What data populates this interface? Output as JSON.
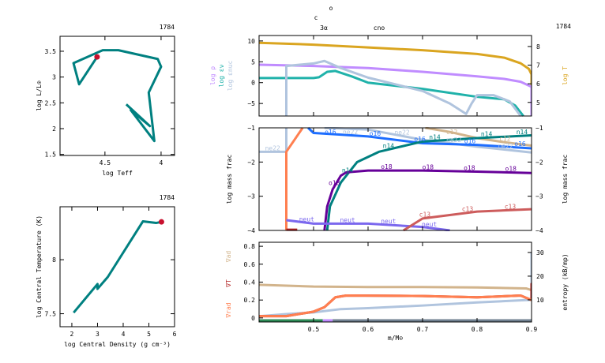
{
  "colors": {
    "teal": "#008080",
    "dot": "#c8102e",
    "logT": "#daa520",
    "logRho": "#c08cff",
    "epsNu": "#20b2aa",
    "epsNuc": "#b0c4de",
    "ne22": "#b0c4de",
    "o16": "#1e6eff",
    "c12": "#d2b48c",
    "n14": "#008080",
    "o18": "#660099",
    "neut": "#7b68ee",
    "c13": "#cd5c5c",
    "coral": "#ff7f50",
    "darkred": "#b22222",
    "gradAd": "#d2b48c",
    "gradRad": "#ff7f50",
    "gradT": "#b22222",
    "entropy": "#b0c4de"
  },
  "burn_labels": [
    {
      "text": "o"
    },
    {
      "text": "c"
    },
    {
      "text": "3α"
    },
    {
      "text": "cno"
    }
  ],
  "chart_data": [
    {
      "id": "hr",
      "type": "line",
      "model": "1784",
      "xlabel": "log Teff",
      "ylabel": "log L/L⊙",
      "xlim": [
        4.9,
        3.88
      ],
      "ylim": [
        1.48,
        3.79
      ],
      "xticks": [
        {
          "v": 4.5,
          "label": "4.5"
        },
        {
          "v": 4,
          "label": "4"
        }
      ],
      "yticks": [
        {
          "v": 1.5,
          "label": "1.5"
        },
        {
          "v": 2,
          "label": "2"
        },
        {
          "v": 2.5,
          "label": "2.5"
        },
        {
          "v": 3,
          "label": "3"
        },
        {
          "v": 3.5,
          "label": "3.5"
        }
      ],
      "series": [
        {
          "color": "teal",
          "x": [
            4.31,
            4.1,
            4.27,
            4.06,
            4.11,
            4.0,
            4.03,
            4.38,
            4.52,
            4.78,
            4.73,
            4.57
          ],
          "y": [
            2.47,
            2.05,
            2.36,
            1.76,
            2.7,
            3.2,
            3.35,
            3.52,
            3.52,
            3.27,
            2.86,
            3.39
          ]
        }
      ],
      "current": {
        "x": 4.57,
        "y": 3.39
      }
    },
    {
      "id": "center",
      "type": "line",
      "model": "1784",
      "xlabel": "log Central Density (g cm⁻³)",
      "ylabel": "log Central Temperature (K)",
      "xlim": [
        1.54,
        6
      ],
      "ylim": [
        7.38,
        8.49
      ],
      "xticks": [
        {
          "v": 2,
          "label": "2"
        },
        {
          "v": 3,
          "label": "3"
        },
        {
          "v": 4,
          "label": "4"
        },
        {
          "v": 5,
          "label": "5"
        },
        {
          "v": 6,
          "label": "6"
        }
      ],
      "yticks": [
        {
          "v": 7.5,
          "label": "7.5"
        },
        {
          "v": 8,
          "label": "8"
        }
      ],
      "series": [
        {
          "color": "teal",
          "x": [
            2.07,
            3.0,
            3.0,
            3.4,
            4.77,
            5.28,
            5.49
          ],
          "y": [
            7.51,
            7.775,
            7.73,
            7.84,
            8.355,
            8.34,
            8.35
          ]
        }
      ],
      "current": {
        "x": 5.49,
        "y": 8.35
      }
    },
    {
      "id": "profile-top",
      "type": "line",
      "model": "1784",
      "xlim": [
        0.4,
        0.9
      ],
      "ylim": [
        -8,
        11.3
      ],
      "y2lim": [
        4.27,
        8.59
      ],
      "ylabels": [
        {
          "text": "log ρ",
          "color": "logRho"
        },
        {
          "text": "log εν",
          "color": "epsNu"
        },
        {
          "text": "log εnuc",
          "color": "epsNuc"
        }
      ],
      "y2label": {
        "text": "log T",
        "color": "logT"
      },
      "yticks": [
        {
          "v": 10,
          "label": "10"
        },
        {
          "v": 5,
          "label": "5"
        },
        {
          "v": 0,
          "label": "0"
        },
        {
          "v": -5,
          "label": "−5"
        }
      ],
      "y2ticks": [
        {
          "v": 8,
          "label": "8"
        },
        {
          "v": 7,
          "label": "7"
        },
        {
          "v": 6,
          "label": "6"
        },
        {
          "v": 5,
          "label": "5"
        }
      ],
      "series": [
        {
          "name": "log T",
          "color": "logT",
          "axis": "y2",
          "x": [
            0.4,
            0.5,
            0.6,
            0.7,
            0.8,
            0.85,
            0.88,
            0.895,
            0.9,
            0.9
          ],
          "y": [
            8.2,
            8.1,
            7.95,
            7.8,
            7.6,
            7.4,
            7.1,
            6.8,
            6.5,
            4.3
          ]
        },
        {
          "name": "log ρ",
          "color": "logRho",
          "x": [
            0.4,
            0.5,
            0.6,
            0.7,
            0.8,
            0.85,
            0.88,
            0.9,
            0.9
          ],
          "y": [
            4.3,
            4,
            3.5,
            2.6,
            1.5,
            0.9,
            0.2,
            -1,
            -8
          ]
        },
        {
          "name": "log εν",
          "color": "epsNu",
          "x": [
            0.4,
            0.5,
            0.51,
            0.525,
            0.54,
            0.57,
            0.6,
            0.7,
            0.8,
            0.85,
            0.87,
            0.885
          ],
          "y": [
            1.1,
            1.1,
            1.3,
            2.6,
            2.8,
            1.5,
            0,
            -1.5,
            -3.4,
            -4,
            -5.5,
            -8
          ]
        },
        {
          "name": "log εnuc",
          "color": "epsNuc",
          "x": [
            0.45,
            0.45,
            0.5,
            0.52,
            0.55,
            0.6,
            0.7,
            0.75,
            0.78,
            0.79,
            0.8,
            0.83,
            0.86,
            0.88
          ],
          "y": [
            -8,
            4,
            4.6,
            5.2,
            3.5,
            1.2,
            -2,
            -5,
            -7.5,
            -5,
            -3,
            -3,
            -4.5,
            -8
          ]
        }
      ]
    },
    {
      "id": "profile-mid",
      "type": "line",
      "ylabel": "log mass frac",
      "y2label": "log mass frac",
      "xlim": [
        0.4,
        0.9
      ],
      "ylim": [
        -4,
        -1
      ],
      "yticks": [
        {
          "v": -1,
          "label": "−1"
        },
        {
          "v": -2,
          "label": "−2"
        },
        {
          "v": -3,
          "label": "−3"
        },
        {
          "v": -4,
          "label": "−4"
        }
      ],
      "series": [
        {
          "name": "ne22",
          "color": "ne22",
          "x": [
            0.4,
            0.45,
            0.45,
            0.45
          ],
          "y": [
            -1.7,
            -1.7,
            -1.7,
            -1.0
          ],
          "labels": [
            {
              "text": "ne22"
            }
          ]
        },
        {
          "name": "ne22",
          "color": "ne22",
          "x": [
            0.52,
            0.6,
            0.7,
            0.8,
            0.9
          ],
          "y": [
            -1.0,
            -1.05,
            -1.35,
            -1.55,
            -1.72
          ],
          "labels": [
            {
              "text": "ne22"
            },
            {
              "text": "ne22"
            },
            {
              "text": "ne22"
            },
            {
              "text": "ne22"
            }
          ]
        },
        {
          "name": "",
          "color": "coral",
          "x": [
            0.45,
            0.45,
            0.465,
            0.48
          ],
          "y": [
            -4,
            -1.7,
            -1.35,
            -1.0
          ]
        },
        {
          "name": "",
          "color": "darkred",
          "x": [
            0.45,
            0.47
          ],
          "y": [
            -3.98,
            -3.98
          ]
        },
        {
          "name": "c12",
          "color": "c12",
          "x": [
            0.705,
            0.75,
            0.8,
            0.85,
            0.9
          ],
          "y": [
            -1.0,
            -1.12,
            -1.3,
            -1.42,
            -1.52
          ],
          "labels": [
            {
              "text": "c12"
            },
            {
              "text": "c12"
            }
          ]
        },
        {
          "name": "o16",
          "color": "o16",
          "x": [
            0.49,
            0.5,
            0.55,
            0.6,
            0.7,
            0.8,
            0.9
          ],
          "y": [
            -1.0,
            -1.15,
            -1.2,
            -1.25,
            -1.45,
            -1.5,
            -1.6
          ],
          "labels": [
            {
              "text": "o16"
            },
            {
              "text": "o16"
            },
            {
              "text": "o16"
            },
            {
              "text": "o16"
            },
            {
              "text": "o16"
            }
          ]
        },
        {
          "name": "n14",
          "color": "n14",
          "x": [
            0.525,
            0.53,
            0.55,
            0.58,
            0.62,
            0.7,
            0.8,
            0.9
          ],
          "y": [
            -4,
            -3.3,
            -2.6,
            -2.0,
            -1.7,
            -1.4,
            -1.3,
            -1.22
          ],
          "labels": [
            {
              "text": "n14"
            },
            {
              "text": "n14"
            },
            {
              "text": "n14"
            },
            {
              "text": "n14"
            },
            {
              "text": "n14"
            }
          ]
        },
        {
          "name": "o18",
          "color": "o18",
          "x": [
            0.52,
            0.525,
            0.535,
            0.55,
            0.56,
            0.6,
            0.7,
            0.8,
            0.9
          ],
          "y": [
            -4,
            -3.3,
            -2.8,
            -2.4,
            -2.3,
            -2.25,
            -2.25,
            -2.28,
            -2.32
          ],
          "labels": [
            {
              "text": "o18"
            },
            {
              "text": "o18"
            },
            {
              "text": "o18"
            },
            {
              "text": "o18"
            },
            {
              "text": "o18"
            }
          ]
        },
        {
          "name": "neut",
          "color": "neut",
          "x": [
            0.45,
            0.5,
            0.6,
            0.7,
            0.75
          ],
          "y": [
            -3.7,
            -3.8,
            -3.8,
            -3.9,
            -4
          ],
          "labels": [
            {
              "text": "neut"
            },
            {
              "text": "neut"
            },
            {
              "text": "neut"
            },
            {
              "text": "neut"
            }
          ]
        },
        {
          "name": "c13",
          "color": "c13",
          "x": [
            0.665,
            0.7,
            0.75,
            0.8,
            0.9
          ],
          "y": [
            -4,
            -3.65,
            -3.55,
            -3.45,
            -3.38
          ],
          "labels": [
            {
              "text": "c13"
            },
            {
              "text": "c13"
            },
            {
              "text": "c13"
            }
          ]
        }
      ]
    },
    {
      "id": "profile-bottom",
      "type": "line",
      "xlabel": "m/M⊙",
      "xlim": [
        0.4,
        0.9
      ],
      "ylim": [
        -0.045,
        0.845
      ],
      "y2lim": [
        0.67,
        34.3
      ],
      "ylabels": [
        {
          "text": "∇ad",
          "color": "gradAd"
        },
        {
          "text": "∇T",
          "color": "gradT"
        },
        {
          "text": "∇rad",
          "color": "gradRad"
        }
      ],
      "y2label": {
        "text": "entropy (kB/mp)",
        "color": ""
      },
      "xticks": [
        {
          "v": 0.5,
          "label": "0.5"
        },
        {
          "v": 0.6,
          "label": "0.6"
        },
        {
          "v": 0.7,
          "label": "0.7"
        },
        {
          "v": 0.8,
          "label": "0.8"
        },
        {
          "v": 0.9,
          "label": "0.9"
        }
      ],
      "yticks": [
        {
          "v": 0,
          "label": "0"
        },
        {
          "v": 0.2,
          "label": "0.2"
        },
        {
          "v": 0.4,
          "label": "0.4"
        },
        {
          "v": 0.6,
          "label": "0.6"
        },
        {
          "v": 0.8,
          "label": "0.8"
        }
      ],
      "y2ticks": [
        {
          "v": 10,
          "label": "10"
        },
        {
          "v": 20,
          "label": "20"
        },
        {
          "v": 30,
          "label": "30"
        }
      ],
      "series": [
        {
          "name": "entropy",
          "color": "entropy",
          "axis": "y2",
          "x": [
            0.4,
            0.45,
            0.5,
            0.55,
            0.6,
            0.7,
            0.8,
            0.89,
            0.9,
            0.9
          ],
          "y": [
            3.1,
            4,
            4.7,
            6.1,
            6.5,
            7.6,
            8.9,
            9.9,
            10,
            30
          ]
        },
        {
          "name": "∇ad",
          "color": "gradAd",
          "x": [
            0.4,
            0.5,
            0.6,
            0.7,
            0.8,
            0.89,
            0.9
          ],
          "y": [
            0.37,
            0.35,
            0.345,
            0.345,
            0.34,
            0.33,
            0.31
          ]
        },
        {
          "name": "∇T",
          "color": "gradT",
          "x": [
            0.4,
            0.45,
            0.5,
            0.52,
            0.54,
            0.56,
            0.7,
            0.8,
            0.88,
            0.9,
            0.9,
            0.9
          ],
          "y": [
            0.02,
            0.02,
            0.07,
            0.12,
            0.23,
            0.25,
            0.245,
            0.23,
            0.25,
            0.2,
            0.38,
            0.2
          ]
        },
        {
          "name": "∇rad",
          "color": "gradRad",
          "x": [
            0.4,
            0.45,
            0.5,
            0.52,
            0.54,
            0.56,
            0.7,
            0.8,
            0.88,
            0.9
          ],
          "y": [
            0.02,
            0.02,
            0.07,
            0.12,
            0.23,
            0.25,
            0.245,
            0.23,
            0.25,
            0.2
          ]
        }
      ],
      "mixing": [
        {
          "from": 0.4,
          "to": 0.517,
          "color": "#2e8b57"
        },
        {
          "from": 0.517,
          "to": 0.535,
          "color": "#c08cff"
        },
        {
          "from": 0.535,
          "to": 0.9,
          "color": "#708090"
        }
      ]
    }
  ]
}
